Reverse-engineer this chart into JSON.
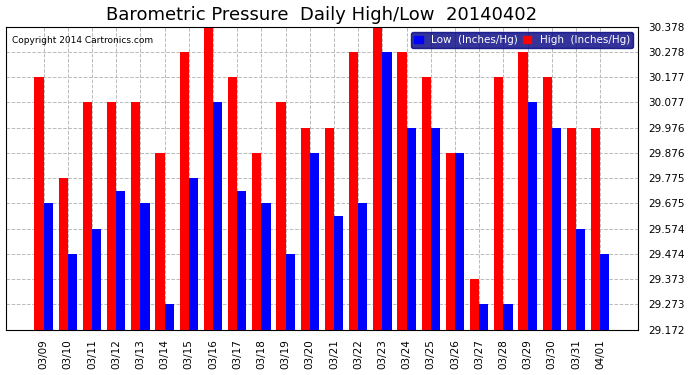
{
  "title": "Barometric Pressure  Daily High/Low  20140402",
  "copyright": "Copyright 2014 Cartronics.com",
  "legend_low": "Low  (Inches/Hg)",
  "legend_high": "High  (Inches/Hg)",
  "background_color": "#ffffff",
  "plot_bg_color": "#ffffff",
  "bar_width": 0.38,
  "ylim_min": 29.172,
  "ylim_max": 30.378,
  "yticks": [
    29.172,
    29.273,
    29.373,
    29.474,
    29.574,
    29.675,
    29.775,
    29.876,
    29.976,
    30.077,
    30.177,
    30.278,
    30.378
  ],
  "dates": [
    "03/09",
    "03/10",
    "03/11",
    "03/12",
    "03/13",
    "03/14",
    "03/15",
    "03/16",
    "03/17",
    "03/18",
    "03/19",
    "03/20",
    "03/21",
    "03/22",
    "03/23",
    "03/24",
    "03/25",
    "03/26",
    "03/27",
    "03/28",
    "03/29",
    "03/30",
    "03/31",
    "04/01"
  ],
  "high_values": [
    30.177,
    29.775,
    30.077,
    30.077,
    30.077,
    29.876,
    30.278,
    30.378,
    30.177,
    29.876,
    30.077,
    29.976,
    29.976,
    30.278,
    30.378,
    30.278,
    30.177,
    29.876,
    29.373,
    30.177,
    30.278,
    30.177,
    29.976,
    29.976
  ],
  "low_values": [
    29.675,
    29.474,
    29.574,
    29.725,
    29.675,
    29.273,
    29.775,
    30.077,
    29.725,
    29.675,
    29.474,
    29.876,
    29.625,
    29.675,
    30.278,
    29.975,
    29.976,
    29.876,
    29.273,
    29.273,
    30.077,
    29.975,
    29.574,
    29.474
  ],
  "high_color": "#ff0000",
  "low_color": "#0000ff",
  "grid_color": "#bbbbbb",
  "title_fontsize": 13,
  "tick_fontsize": 7.5,
  "legend_fontsize": 7.5,
  "legend_bg": "#000080"
}
